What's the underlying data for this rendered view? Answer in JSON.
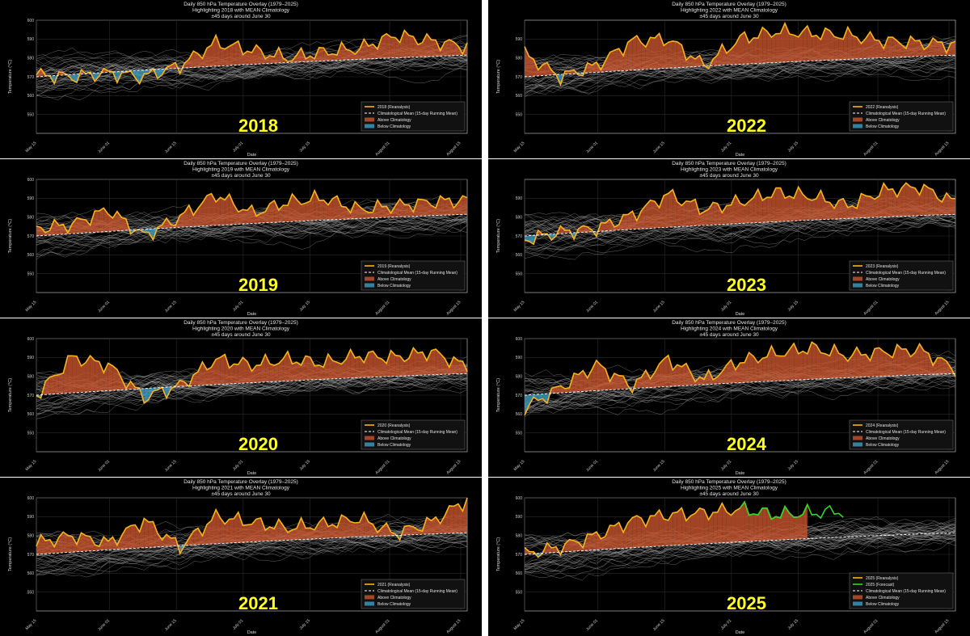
{
  "chart_data": [
    {
      "type": "line",
      "year_label": "2018",
      "title": [
        "Daily 850 hPa Temperature Overlay (1979–2025)",
        "Highlighting 2018 with MEAN Climatology",
        "±45 days around June 30"
      ],
      "xlabel": "Date",
      "ylabel": "Temperature (°C)",
      "ylim": [
        54,
        60
      ],
      "yticks": [
        "550",
        "560",
        "570",
        "580",
        "590",
        "600"
      ],
      "xticks": [
        "May 15",
        "June 01",
        "June 15",
        "July 01",
        "July 15",
        "August 01",
        "August 15"
      ],
      "legend": [
        "2018 (Reanalysis)",
        "Climatological Mean (15-day Running Mean)",
        "Above Climatology",
        "Below Climatology"
      ],
      "legend_position": "lower right",
      "grid": true,
      "x": [
        "May 15",
        "May 22",
        "Jun 01",
        "Jun 08",
        "Jun 15",
        "Jun 22",
        "Jul 01",
        "Jul 08",
        "Jul 15",
        "Jul 22",
        "Aug 01",
        "Aug 08",
        "Aug 15"
      ],
      "series": [
        {
          "name": "2018 (Reanalysis)",
          "values": [
            57.1,
            57.0,
            57.2,
            57.0,
            57.6,
            58.8,
            58.4,
            58.0,
            58.3,
            58.5,
            59.2,
            58.9,
            58.6
          ]
        }
      ]
    },
    {
      "type": "line",
      "year_label": "2022",
      "title": [
        "Daily 850 hPa Temperature Overlay (1979–2025)",
        "Highlighting 2022 with MEAN Climatology",
        "±45 days around June 30"
      ],
      "xlabel": "Date",
      "ylabel": "Temperature (°C)",
      "ylim": [
        54,
        60
      ],
      "yticks": [
        "550",
        "560",
        "570",
        "580",
        "590"
      ],
      "xticks": [
        "May 15",
        "June 01",
        "June 15",
        "July 01",
        "July 15",
        "August 01",
        "August 15"
      ],
      "legend": [
        "2022 (Reanalysis)",
        "Climatological Mean (15-day Running Mean)",
        "Above Climatology",
        "Below Climatology"
      ],
      "legend_position": "lower right",
      "grid": true,
      "x": [
        "May 15",
        "May 22",
        "Jun 01",
        "Jun 08",
        "Jun 15",
        "Jun 22",
        "Jul 01",
        "Jul 08",
        "Jul 15",
        "Jul 22",
        "Aug 01",
        "Aug 08",
        "Aug 15"
      ],
      "series": [
        {
          "name": "2022 (Reanalysis)",
          "values": [
            58.2,
            57.0,
            57.6,
            58.9,
            59.0,
            57.6,
            59.0,
            59.4,
            59.3,
            59.2,
            58.9,
            58.8,
            58.7
          ]
        }
      ]
    },
    {
      "type": "line",
      "year_label": "2019",
      "title": [
        "Daily 850 hPa Temperature Overlay (1979–2025)",
        "Highlighting 2019 with MEAN Climatology",
        "±45 days around June 30"
      ],
      "xlabel": "Date",
      "ylabel": "Temperature (°C)",
      "ylim": [
        54,
        60
      ],
      "yticks": [
        "550",
        "560",
        "570",
        "580",
        "590",
        "600"
      ],
      "xticks": [
        "May 15",
        "June 01",
        "June 15",
        "July 01",
        "July 15",
        "August 01",
        "August 15"
      ],
      "legend": [
        "2019 (Reanalysis)",
        "Climatological Mean (15-day Running Mean)",
        "Above Climatology",
        "Below Climatology"
      ],
      "legend_position": "lower right",
      "grid": true,
      "x": [
        "May 15",
        "May 22",
        "Jun 01",
        "Jun 08",
        "Jun 15",
        "Jun 22",
        "Jul 01",
        "Jul 08",
        "Jul 15",
        "Jul 22",
        "Aug 01",
        "Aug 08",
        "Aug 15"
      ],
      "series": [
        {
          "name": "2019 (Reanalysis)",
          "values": [
            57.4,
            57.6,
            58.4,
            57.0,
            58.0,
            59.2,
            58.2,
            58.8,
            59.0,
            58.4,
            58.6,
            58.8,
            58.9
          ]
        }
      ]
    },
    {
      "type": "line",
      "year_label": "2023",
      "title": [
        "Daily 850 hPa Temperature Overlay (1979–2025)",
        "Highlighting 2023 with MEAN Climatology",
        "±45 days around June 30"
      ],
      "xlabel": "Date",
      "ylabel": "Temperature (°C)",
      "ylim": [
        54,
        60
      ],
      "yticks": [
        "550",
        "560",
        "570",
        "580",
        "590"
      ],
      "xticks": [
        "May 15",
        "June 01",
        "June 15",
        "July 01",
        "July 15",
        "August 01",
        "August 15"
      ],
      "legend": [
        "2023 (Reanalysis)",
        "Climatological Mean (15-day Running Mean)",
        "Above Climatology",
        "Below Climatology"
      ],
      "legend_position": "lower right",
      "grid": true,
      "x": [
        "May 15",
        "May 22",
        "Jun 01",
        "Jun 08",
        "Jun 15",
        "Jun 22",
        "Jul 01",
        "Jul 08",
        "Jul 15",
        "Jul 22",
        "Aug 01",
        "Aug 08",
        "Aug 15"
      ],
      "series": [
        {
          "name": "2023 (Reanalysis)",
          "values": [
            56.8,
            57.2,
            57.4,
            58.1,
            59.2,
            58.4,
            58.8,
            59.3,
            59.1,
            58.6,
            59.4,
            59.6,
            58.8
          ]
        }
      ]
    },
    {
      "type": "line",
      "year_label": "2020",
      "title": [
        "Daily 850 hPa Temperature Overlay (1979–2025)",
        "Highlighting 2020 with MEAN Climatology",
        "±45 days around June 30"
      ],
      "xlabel": "Date",
      "ylabel": "Temperature (°C)",
      "ylim": [
        54,
        60
      ],
      "yticks": [
        "550",
        "560",
        "570",
        "580",
        "590",
        "600"
      ],
      "xticks": [
        "May 15",
        "June 01",
        "June 15",
        "July 01",
        "July 15",
        "August 01",
        "August 15"
      ],
      "legend": [
        "2020 (Reanalysis)",
        "Climatological Mean (15-day Running Mean)",
        "Above Climatology",
        "Below Climatology"
      ],
      "legend_position": "lower right",
      "grid": true,
      "x": [
        "May 15",
        "May 22",
        "Jun 01",
        "Jun 08",
        "Jun 15",
        "Jun 22",
        "Jul 01",
        "Jul 08",
        "Jul 15",
        "Jul 22",
        "Aug 01",
        "Aug 08",
        "Aug 15"
      ],
      "series": [
        {
          "name": "2020 (Reanalysis)",
          "values": [
            57.0,
            59.0,
            58.6,
            56.9,
            57.5,
            58.9,
            58.6,
            58.9,
            58.7,
            59.1,
            59.0,
            59.3,
            58.5
          ]
        }
      ]
    },
    {
      "type": "line",
      "year_label": "2024",
      "title": [
        "Daily 850 hPa Temperature Overlay (1979–2025)",
        "Highlighting 2024 with MEAN Climatology",
        "±45 days around June 30"
      ],
      "xlabel": "Date",
      "ylabel": "Temperature (°C)",
      "ylim": [
        54,
        60
      ],
      "yticks": [
        "550",
        "560",
        "570",
        "580",
        "590",
        "600"
      ],
      "xticks": [
        "May 15",
        "June 01",
        "June 15",
        "July 01",
        "July 15",
        "August 01",
        "August 15"
      ],
      "legend": [
        "2024 (Reanalysis)",
        "Climatological Mean (15-day Running Mean)",
        "Above Climatology",
        "Below Climatology"
      ],
      "legend_position": "lower right",
      "grid": true,
      "x": [
        "May 15",
        "May 22",
        "Jun 01",
        "Jun 08",
        "Jun 15",
        "Jun 22",
        "Jul 01",
        "Jul 08",
        "Jul 15",
        "Jul 22",
        "Aug 01",
        "Aug 08",
        "Aug 15"
      ],
      "series": [
        {
          "name": "2024 (Reanalysis)",
          "values": [
            56.3,
            57.4,
            58.6,
            57.5,
            58.9,
            57.8,
            58.8,
            59.2,
            59.5,
            59.1,
            59.3,
            59.4,
            58.4
          ]
        }
      ]
    },
    {
      "type": "line",
      "year_label": "2021",
      "title": [
        "Daily 850 hPa Temperature Overlay (1979–2025)",
        "Highlighting 2021 with MEAN Climatology",
        "±45 days around June 30"
      ],
      "xlabel": "Date",
      "ylabel": "Temperature (°C)",
      "ylim": [
        54,
        60
      ],
      "yticks": [
        "550",
        "560",
        "570",
        "580",
        "590",
        "600"
      ],
      "xticks": [
        "May 15",
        "June 01",
        "June 15",
        "July 01",
        "July 15",
        "August 01",
        "August 15"
      ],
      "legend": [
        "2021 (Reanalysis)",
        "Climatological Mean (15-day Running Mean)",
        "Above Climatology",
        "Below Climatology"
      ],
      "legend_position": "lower right",
      "grid": true,
      "x": [
        "May 15",
        "May 22",
        "Jun 01",
        "Jun 08",
        "Jun 15",
        "Jun 22",
        "Jul 01",
        "Jul 08",
        "Jul 15",
        "Jul 22",
        "Aug 01",
        "Aug 08",
        "Aug 15"
      ],
      "series": [
        {
          "name": "2021 (Reanalysis)",
          "values": [
            57.6,
            58.0,
            57.6,
            58.8,
            57.4,
            59.0,
            58.7,
            58.4,
            58.6,
            58.9,
            58.1,
            58.7,
            59.9
          ]
        }
      ]
    },
    {
      "type": "line",
      "year_label": "2025",
      "title": [
        "Daily 850 hPa Temperature Overlay (1979–2025)",
        "Highlighting 2025 with MEAN Climatology",
        "±45 days around June 30"
      ],
      "xlabel": "Date",
      "ylabel": "Temperature (°C)",
      "ylim": [
        54,
        60
      ],
      "yticks": [
        "550",
        "560",
        "570",
        "580",
        "590",
        "600"
      ],
      "xticks": [
        "May 15",
        "June 01",
        "June 15",
        "July 01",
        "July 15",
        "August 01",
        "August 15"
      ],
      "legend": [
        "2025 (Reanalysis)",
        "2025 (Forecast)",
        "Climatological Mean (15-day Running Mean)",
        "Above Climatology",
        "Below Climatology"
      ],
      "legend_position": "lower right",
      "grid": true,
      "x": [
        "May 15",
        "May 22",
        "Jun 01",
        "Jun 08",
        "Jun 15",
        "Jun 22",
        "Jul 01",
        "Jul 08",
        "Jul 15",
        "Jul 22",
        "Aug 01",
        "Aug 08",
        "Aug 15"
      ],
      "series": [
        {
          "name": "2025 (Reanalysis)",
          "values": [
            57.0,
            57.4,
            58.0,
            58.8,
            59.1,
            59.2,
            59.4,
            59.1,
            59.2,
            null,
            null,
            null,
            null
          ]
        },
        {
          "name": "2025 (Forecast)",
          "values": [
            null,
            null,
            null,
            null,
            null,
            null,
            59.4,
            59.1,
            59.2,
            59.3,
            null,
            null,
            null
          ]
        }
      ]
    }
  ],
  "colors": {
    "background": "#000000",
    "observed": "#f7b21e",
    "forecast": "#33d62a",
    "above": "#c8552e",
    "below": "#3e9ec4",
    "climatology": "#ffffff",
    "ensemble": "#9a9a9a",
    "year_label": "#ffff1a"
  }
}
